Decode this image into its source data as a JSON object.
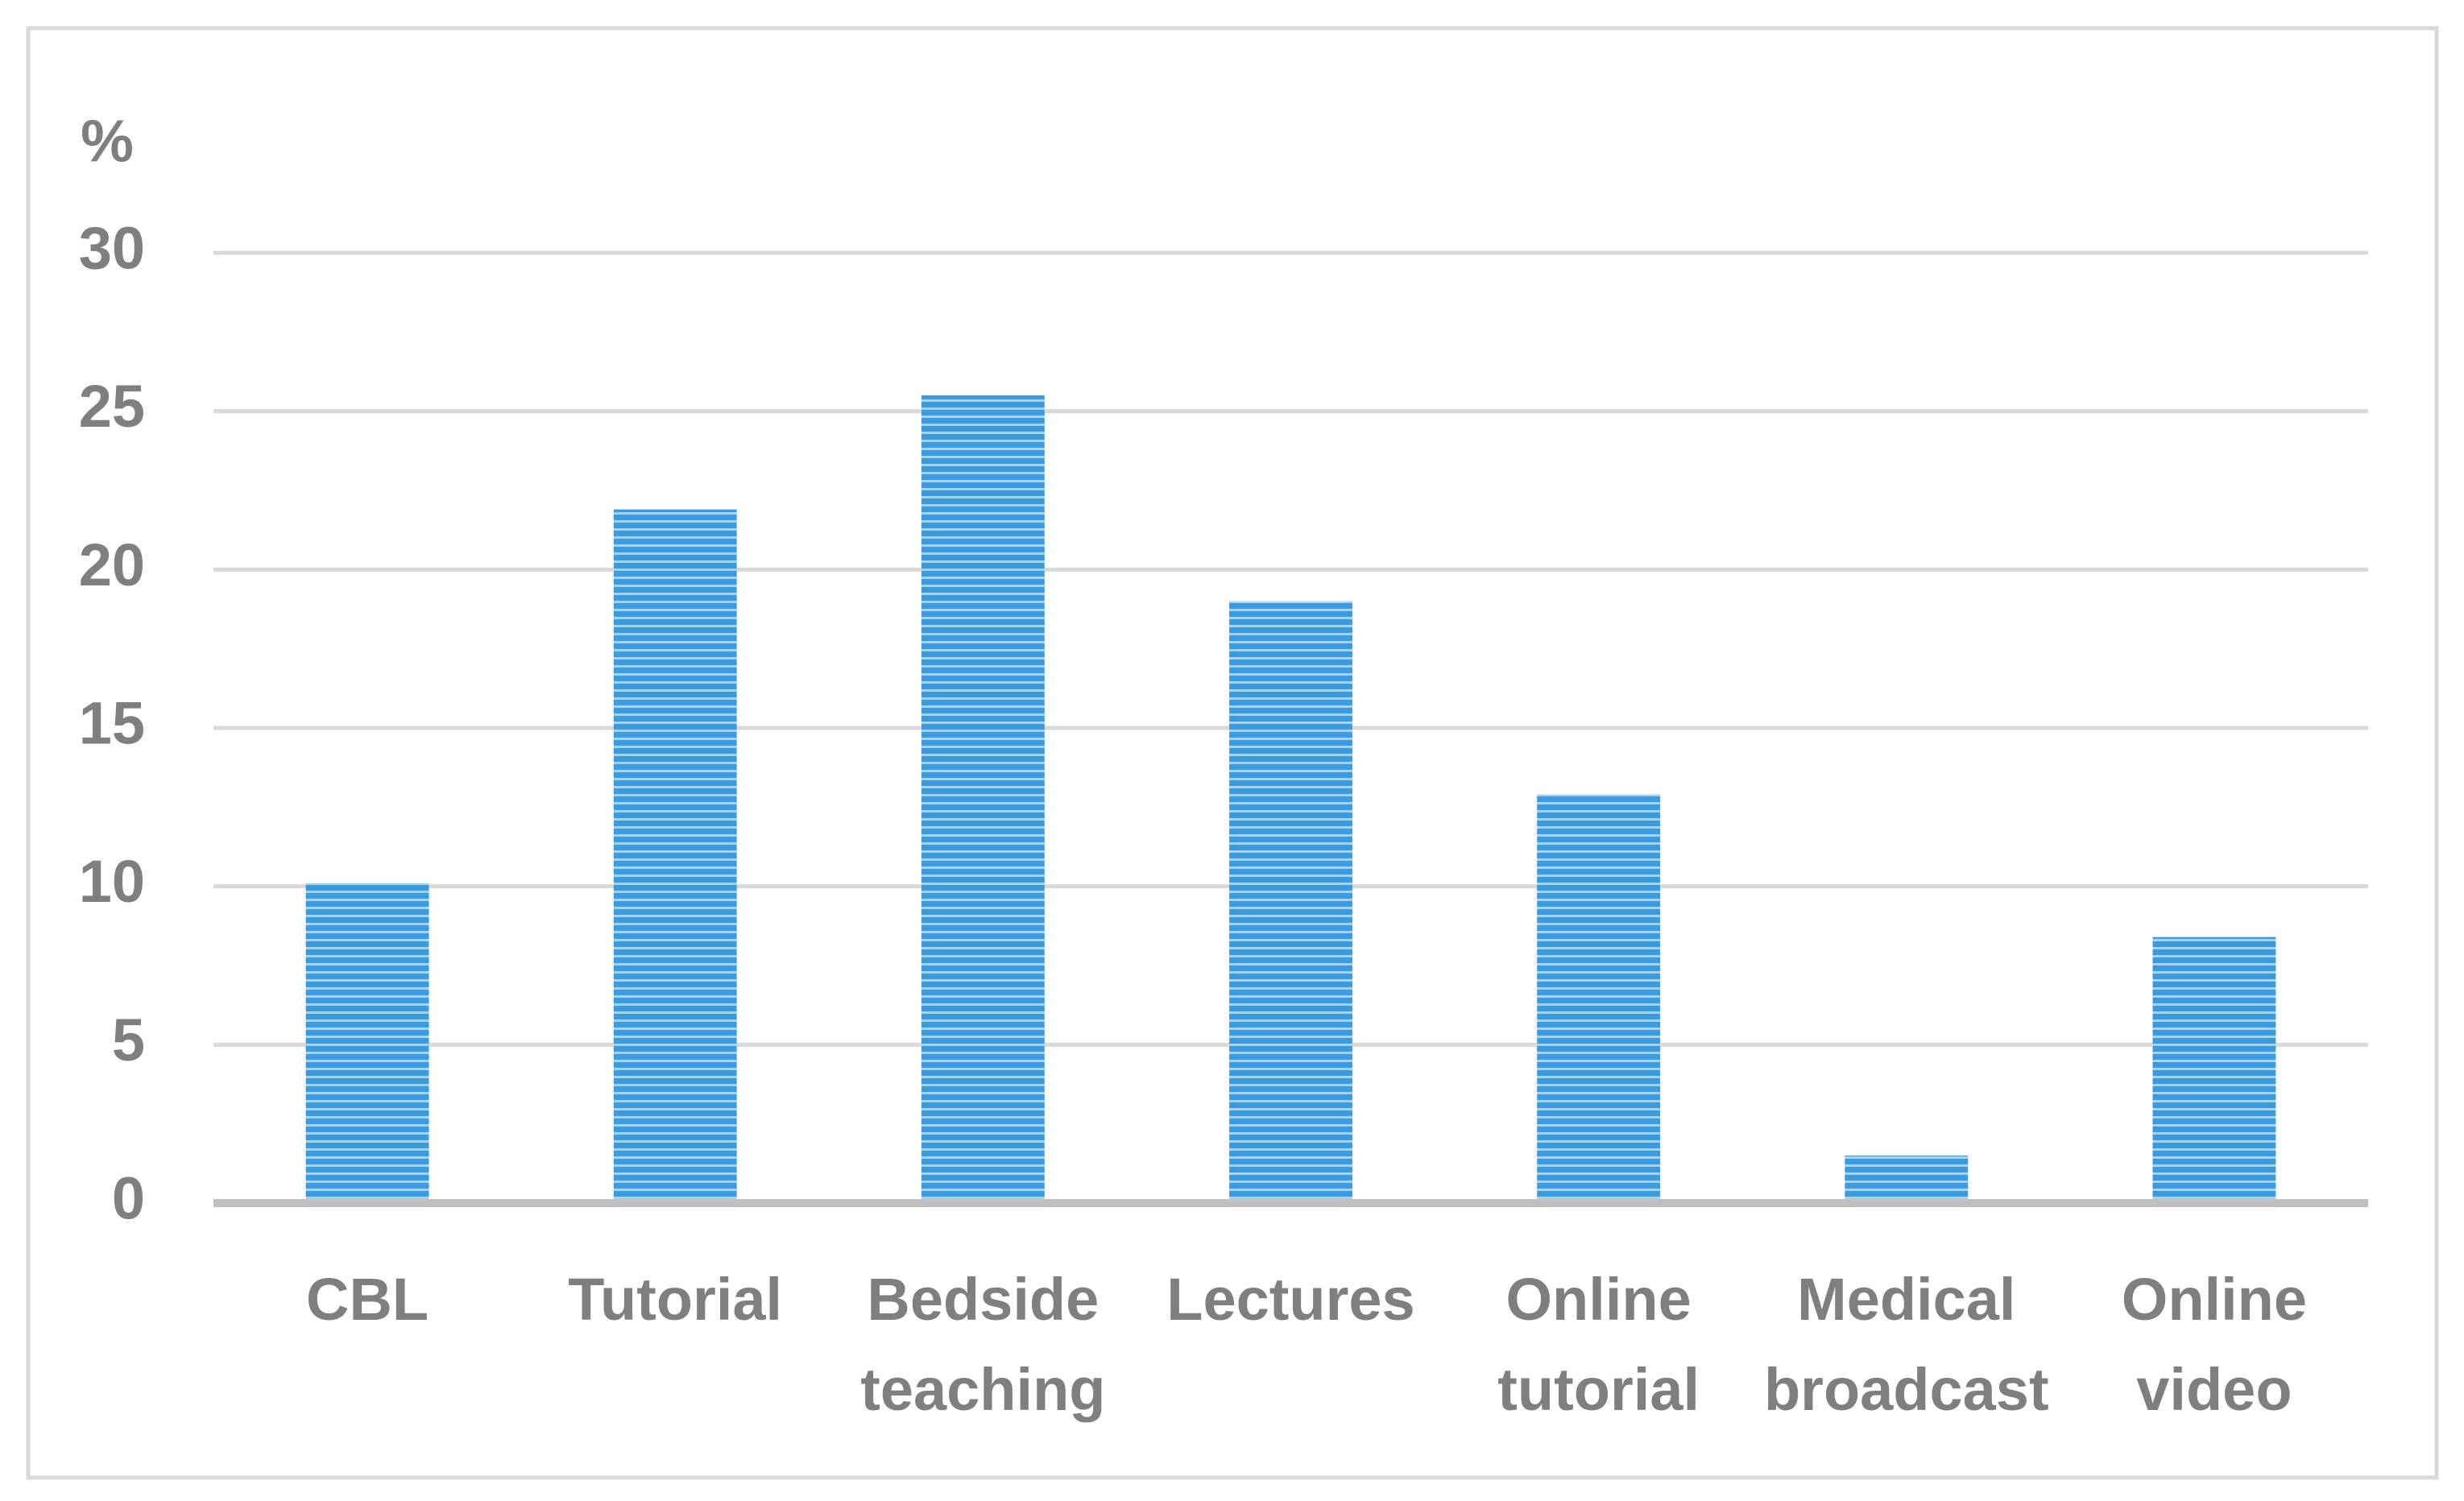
{
  "chart_data": {
    "type": "bar",
    "y_label": "%",
    "categories": [
      "CBL",
      "Tutorial",
      "Bedside teaching",
      "Lectures",
      "Online tutorial",
      "Medical broadcast",
      "Online video"
    ],
    "values": [
      10.1,
      21.9,
      25.5,
      19.0,
      12.9,
      1.5,
      8.4
    ],
    "color": "#3a9be0",
    "ylim": [
      0,
      30
    ],
    "yticks": [
      0,
      5,
      10,
      15,
      20,
      25,
      30
    ],
    "grid": true
  }
}
